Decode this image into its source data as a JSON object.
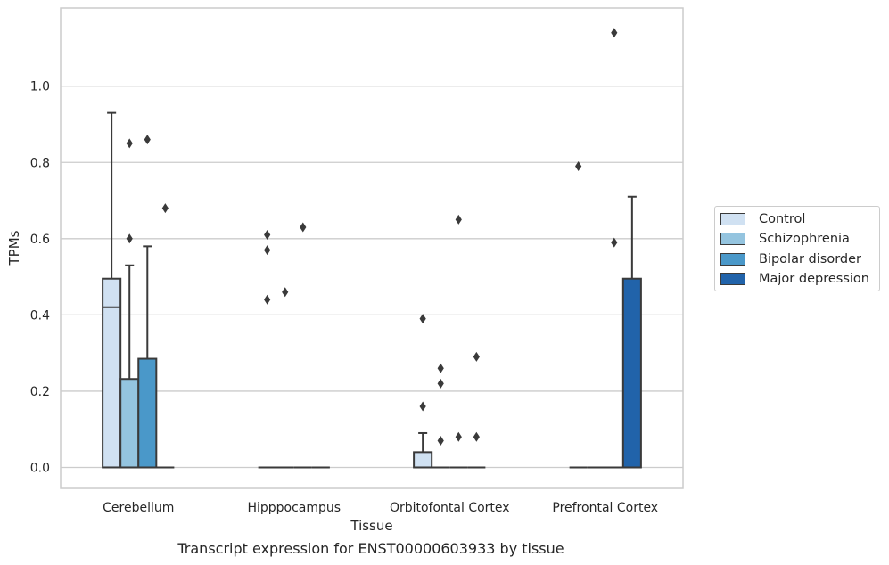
{
  "chart_data": {
    "type": "box",
    "title": "Transcript expression for ENST00000603933 by tissue",
    "xlabel": "Tissue",
    "ylabel": "TPMs",
    "ylim": [
      -0.055,
      1.205
    ],
    "yticks": [
      "0.0",
      "0.2",
      "0.4",
      "0.6",
      "0.8",
      "1.0"
    ],
    "grid": "horizontal",
    "legend_position": "right",
    "categories": [
      "Cerebellum",
      "Hipppocampus",
      "Orbitofontal Cortex",
      "Prefrontal Cortex"
    ],
    "series": [
      {
        "name": "Control",
        "color": "#d0e1f2",
        "boxes": [
          {
            "min": 0.0,
            "q1": 0.0,
            "median": 0.42,
            "q3": 0.495,
            "max": 0.93,
            "outliers": []
          },
          {
            "min": 0.0,
            "q1": 0.0,
            "median": 0.0,
            "q3": 0.0,
            "max": 0.0,
            "outliers": [
              0.44,
              0.57,
              0.61
            ]
          },
          {
            "min": 0.0,
            "q1": 0.0,
            "median": 0.0,
            "q3": 0.04,
            "max": 0.09,
            "outliers": [
              0.16,
              0.39
            ]
          },
          {
            "min": 0.0,
            "q1": 0.0,
            "median": 0.0,
            "q3": 0.0,
            "max": 0.0,
            "outliers": [
              0.79
            ]
          }
        ]
      },
      {
        "name": "Schizophrenia",
        "color": "#94c4df",
        "boxes": [
          {
            "min": 0.0,
            "q1": 0.0,
            "median": 0.0,
            "q3": 0.232,
            "max": 0.53,
            "outliers": [
              0.6,
              0.85
            ]
          },
          {
            "min": 0.0,
            "q1": 0.0,
            "median": 0.0,
            "q3": 0.0,
            "max": 0.0,
            "outliers": [
              0.46
            ]
          },
          {
            "min": 0.0,
            "q1": 0.0,
            "median": 0.0,
            "q3": 0.0,
            "max": 0.0,
            "outliers": [
              0.07,
              0.22,
              0.26
            ]
          },
          {
            "min": 0.0,
            "q1": 0.0,
            "median": 0.0,
            "q3": 0.0,
            "max": 0.0,
            "outliers": []
          }
        ]
      },
      {
        "name": "Bipolar disorder",
        "color": "#4a98c9",
        "boxes": [
          {
            "min": 0.0,
            "q1": 0.0,
            "median": 0.0,
            "q3": 0.285,
            "max": 0.58,
            "outliers": [
              0.86
            ]
          },
          {
            "min": 0.0,
            "q1": 0.0,
            "median": 0.0,
            "q3": 0.0,
            "max": 0.0,
            "outliers": [
              0.63
            ]
          },
          {
            "min": 0.0,
            "q1": 0.0,
            "median": 0.0,
            "q3": 0.0,
            "max": 0.0,
            "outliers": [
              0.08,
              0.65
            ]
          },
          {
            "min": 0.0,
            "q1": 0.0,
            "median": 0.0,
            "q3": 0.0,
            "max": 0.0,
            "outliers": [
              0.59,
              1.14
            ]
          }
        ]
      },
      {
        "name": "Major depression",
        "color": "#2163aa",
        "boxes": [
          {
            "min": 0.0,
            "q1": 0.0,
            "median": 0.0,
            "q3": 0.0,
            "max": 0.0,
            "outliers": [
              0.68
            ]
          },
          {
            "min": 0.0,
            "q1": 0.0,
            "median": 0.0,
            "q3": 0.0,
            "max": 0.0,
            "outliers": []
          },
          {
            "min": 0.0,
            "q1": 0.0,
            "median": 0.0,
            "q3": 0.0,
            "max": 0.0,
            "outliers": [
              0.08,
              0.29
            ]
          },
          {
            "min": 0.0,
            "q1": 0.0,
            "median": 0.0,
            "q3": 0.495,
            "max": 0.71,
            "outliers": []
          }
        ]
      }
    ]
  }
}
